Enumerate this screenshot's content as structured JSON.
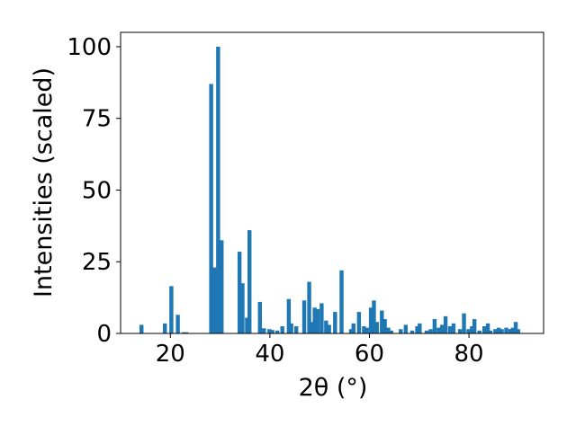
{
  "chart_data": {
    "type": "bar",
    "title": "",
    "xlabel": "2θ (°)",
    "ylabel": "Intensities (scaled)",
    "xlim": [
      10,
      95
    ],
    "ylim": [
      0,
      105
    ],
    "bar_width": 0.8,
    "bar_color": "#1f77b4",
    "grid": false,
    "legend": "none",
    "xticks": [
      {
        "value": 20,
        "label": "20"
      },
      {
        "value": 40,
        "label": "40"
      },
      {
        "value": 60,
        "label": "60"
      },
      {
        "value": 80,
        "label": "80"
      }
    ],
    "yticks": [
      {
        "value": 0,
        "label": "0"
      },
      {
        "value": 25,
        "label": "25"
      },
      {
        "value": 50,
        "label": "50"
      },
      {
        "value": 75,
        "label": "75"
      },
      {
        "value": 100,
        "label": "100"
      }
    ],
    "x": [
      14.2,
      18.9,
      20.2,
      21.5,
      22.7,
      23.2,
      28.2,
      28.9,
      29.6,
      30.3,
      33.9,
      34.5,
      35.4,
      35.9,
      38.0,
      38.8,
      39.9,
      40.5,
      41.5,
      42.5,
      43.8,
      44.3,
      45.3,
      46.9,
      47.9,
      48.5,
      49.0,
      49.6,
      50.4,
      51.3,
      51.9,
      53.1,
      54.4,
      56.3,
      56.8,
      57.9,
      58.9,
      59.5,
      60.3,
      60.9,
      61.5,
      62.5,
      63.1,
      63.8,
      64.4,
      66.3,
      67.3,
      68.6,
      69.6,
      70.1,
      71.5,
      72.3,
      73.1,
      73.9,
      74.6,
      75.3,
      76.2,
      76.9,
      78.2,
      79.0,
      79.9,
      80.6,
      81.1,
      82.1,
      83.1,
      83.8,
      84.3,
      85.3,
      86.0,
      86.6,
      87.5,
      88.3,
      88.8,
      89.4,
      89.9
    ],
    "values": [
      3.0,
      3.5,
      16.5,
      6.5,
      0.4,
      0.4,
      87.0,
      23.0,
      100.0,
      32.5,
      28.5,
      17.5,
      5.5,
      36.0,
      11.0,
      1.8,
      1.5,
      1.2,
      1.0,
      2.5,
      12.0,
      3.5,
      2.5,
      11.5,
      18.0,
      4.0,
      9.0,
      8.5,
      10.5,
      4.5,
      3.0,
      7.5,
      22.0,
      1.5,
      3.5,
      7.5,
      2.5,
      2.0,
      9.0,
      11.5,
      4.0,
      8.0,
      5.0,
      2.0,
      1.0,
      1.5,
      3.0,
      1.0,
      2.5,
      3.5,
      1.0,
      1.5,
      5.0,
      2.0,
      3.0,
      6.0,
      2.5,
      3.5,
      1.5,
      7.0,
      1.5,
      2.5,
      5.0,
      1.0,
      2.5,
      3.5,
      1.0,
      1.5,
      2.0,
      1.5,
      2.0,
      1.5,
      2.0,
      4.0,
      1.5
    ]
  }
}
